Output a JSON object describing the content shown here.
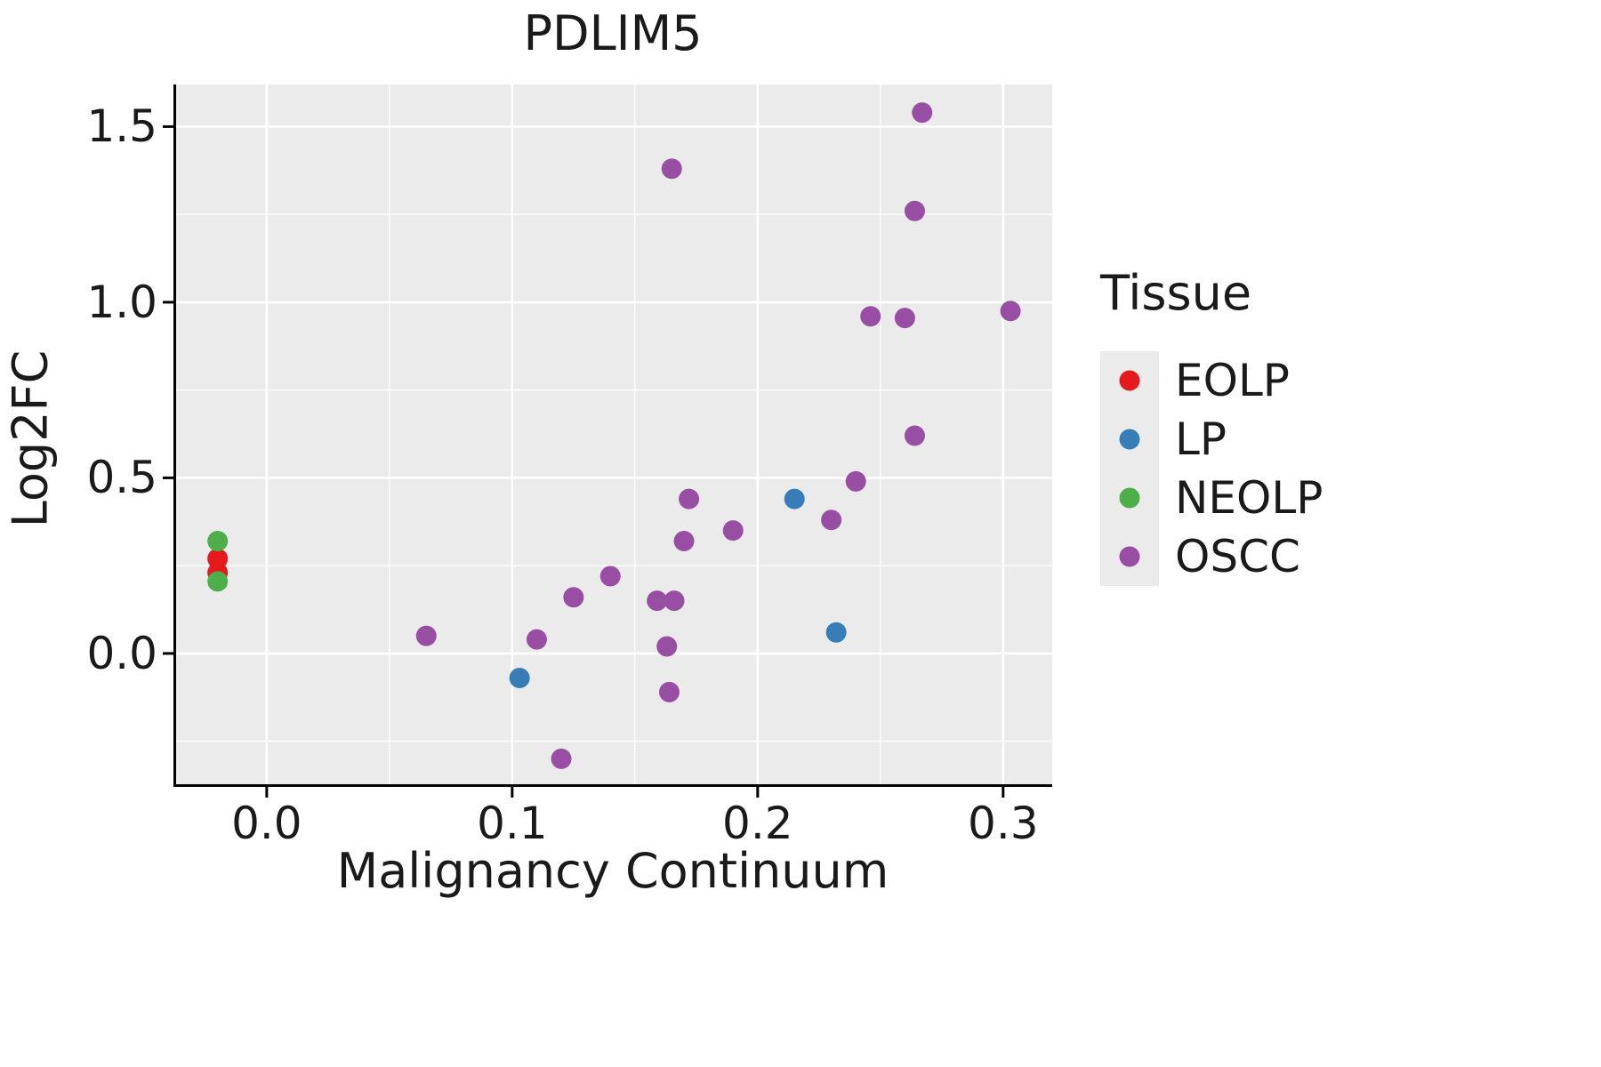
{
  "chart_data": {
    "type": "scatter",
    "title": "PDLIM5",
    "xlabel": "Malignancy Continuum",
    "ylabel": "Log2FC",
    "xlim": [
      -0.038,
      0.32
    ],
    "ylim": [
      -0.38,
      1.62
    ],
    "x_ticks": [
      0.0,
      0.1,
      0.2,
      0.3
    ],
    "y_ticks": [
      0.0,
      0.5,
      1.0,
      1.5
    ],
    "x_tick_labels": [
      "0.0",
      "0.1",
      "0.2",
      "0.3"
    ],
    "y_tick_labels": [
      "0.0",
      "0.5",
      "1.0",
      "1.5"
    ],
    "x_minor": [
      0.05,
      0.15,
      0.25
    ],
    "y_minor": [
      -0.25,
      0.25,
      0.75,
      1.25
    ],
    "grid": true,
    "panel_bg": "#EBEBEB",
    "grid_color": "#FFFFFF",
    "point_radius": 11.5,
    "legend": {
      "title": "Tissue",
      "position": "right",
      "entries": [
        {
          "label": "EOLP",
          "color": "#E41A1C"
        },
        {
          "label": "LP",
          "color": "#377EB8"
        },
        {
          "label": "NEOLP",
          "color": "#4DAF4A"
        },
        {
          "label": "OSCC",
          "color": "#984EA3"
        }
      ]
    },
    "series": [
      {
        "name": "EOLP",
        "color": "#E41A1C",
        "points": [
          [
            -0.02,
            0.27
          ],
          [
            -0.02,
            0.23
          ]
        ]
      },
      {
        "name": "LP",
        "color": "#377EB8",
        "points": [
          [
            0.103,
            -0.07
          ],
          [
            0.215,
            0.44
          ],
          [
            0.232,
            0.06
          ]
        ]
      },
      {
        "name": "NEOLP",
        "color": "#4DAF4A",
        "points": [
          [
            -0.02,
            0.32
          ],
          [
            -0.02,
            0.205
          ]
        ]
      },
      {
        "name": "OSCC",
        "color": "#984EA3",
        "points": [
          [
            0.065,
            0.05
          ],
          [
            0.11,
            0.04
          ],
          [
            0.12,
            -0.3
          ],
          [
            0.125,
            0.16
          ],
          [
            0.14,
            0.22
          ],
          [
            0.159,
            0.15
          ],
          [
            0.166,
            0.15
          ],
          [
            0.163,
            0.02
          ],
          [
            0.164,
            -0.11
          ],
          [
            0.165,
            1.38
          ],
          [
            0.17,
            0.32
          ],
          [
            0.172,
            0.44
          ],
          [
            0.19,
            0.35
          ],
          [
            0.23,
            0.38
          ],
          [
            0.24,
            0.49
          ],
          [
            0.246,
            0.96
          ],
          [
            0.26,
            0.955
          ],
          [
            0.264,
            0.62
          ],
          [
            0.264,
            1.26
          ],
          [
            0.267,
            1.54
          ],
          [
            0.303,
            0.975
          ]
        ]
      }
    ]
  }
}
